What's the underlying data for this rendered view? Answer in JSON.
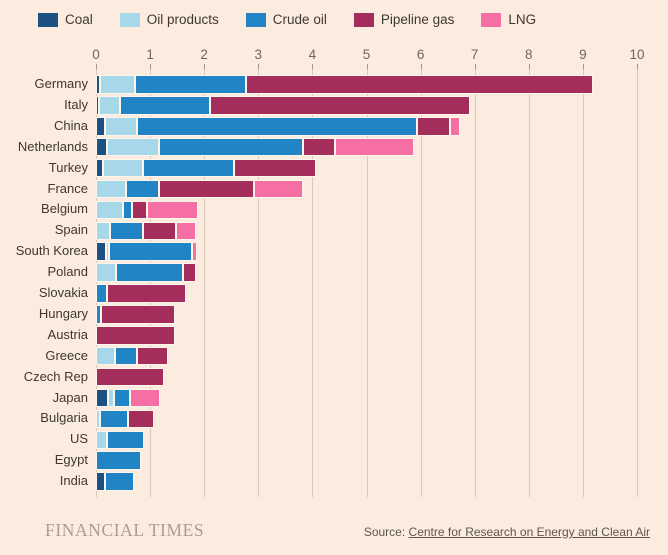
{
  "colors": {
    "background": "#fcecdf",
    "coal": "#1d5181",
    "oil_products": "#a6d8e9",
    "crude_oil": "#2184c4",
    "pipeline_gas": "#a52d5b",
    "lng": "#f56fa5",
    "gridline": "#d9c9bb"
  },
  "legend": {
    "items": [
      "Coal",
      "Oil products",
      "Crude oil",
      "Pipeline gas",
      "LNG"
    ]
  },
  "chart_data": {
    "type": "bar",
    "orientation": "horizontal",
    "stacked": true,
    "grid": true,
    "legend_position": "top",
    "xlim": [
      0,
      10
    ],
    "xticks": [
      0,
      1,
      2,
      3,
      4,
      5,
      6,
      7,
      8,
      9,
      10
    ],
    "categories": [
      "Germany",
      "Italy",
      "China",
      "Netherlands",
      "Turkey",
      "France",
      "Belgium",
      "Spain",
      "South Korea",
      "Poland",
      "Slovakia",
      "Hungary",
      "Austria",
      "Greece",
      "Czech Rep",
      "Japan",
      "Bulgaria",
      "US",
      "Egypt",
      "India"
    ],
    "series": [
      {
        "name": "Coal",
        "color": "#1d5181",
        "values": [
          0.08,
          0.06,
          0.16,
          0.2,
          0.13,
          0,
          0,
          0,
          0.19,
          0,
          0,
          0,
          0,
          0,
          0,
          0.23,
          0,
          0,
          0,
          0.16
        ]
      },
      {
        "name": "Oil products",
        "color": "#a6d8e9",
        "values": [
          0.65,
          0.38,
          0.59,
          0.97,
          0.73,
          0.55,
          0.5,
          0.26,
          0.05,
          0.37,
          0,
          0,
          0,
          0.35,
          0,
          0.1,
          0.07,
          0.21,
          0,
          0
        ]
      },
      {
        "name": "Crude oil",
        "color": "#2184c4",
        "values": [
          2.05,
          1.67,
          5.18,
          2.66,
          1.69,
          0.62,
          0.17,
          0.61,
          1.54,
          1.23,
          0.21,
          0.1,
          0,
          0.4,
          0,
          0.3,
          0.52,
          0.67,
          0.84,
          0.54
        ]
      },
      {
        "name": "Pipeline gas",
        "color": "#a52d5b",
        "values": [
          6.4,
          4.8,
          0.61,
          0.59,
          1.52,
          1.75,
          0.27,
          0.6,
          0,
          0.25,
          1.45,
          1.36,
          1.46,
          0.58,
          1.26,
          0,
          0.48,
          0,
          0,
          0
        ]
      },
      {
        "name": "LNG",
        "color": "#f56fa5",
        "values": [
          0,
          0,
          0.18,
          1.45,
          0,
          0.9,
          0.95,
          0.38,
          0.08,
          0,
          0,
          0,
          0,
          0,
          0,
          0.55,
          0,
          0,
          0,
          0
        ]
      }
    ]
  },
  "footer": {
    "brand": "FINANCIAL TIMES",
    "source_prefix": "Source: ",
    "source_link": "Centre for Research on Energy and Clean Air"
  }
}
